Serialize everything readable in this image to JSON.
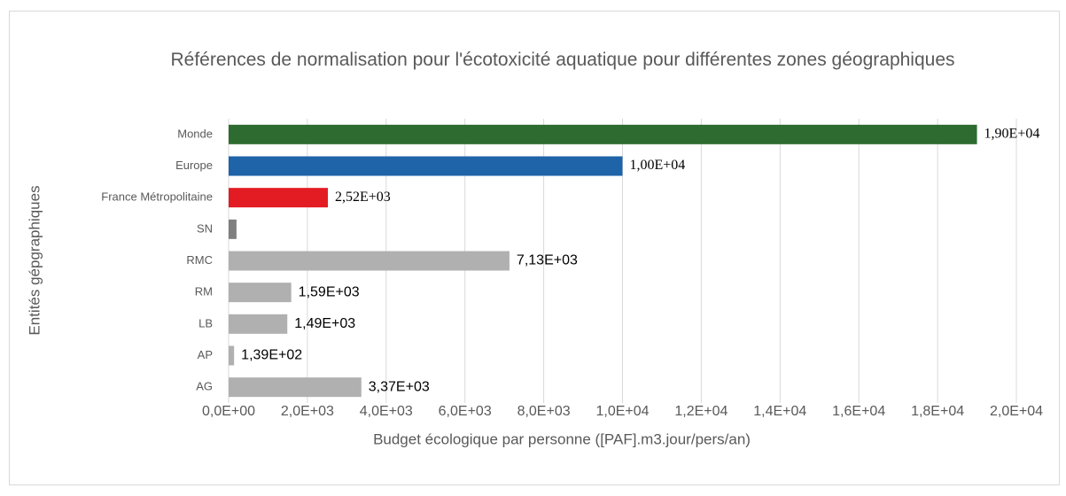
{
  "chart_data": {
    "type": "bar",
    "orientation": "horizontal",
    "title": "Références de normalisation pour l'écotoxicité aquatique pour différentes zones géographiques",
    "x_label": "Budget écologique par personne ([PAF].m3.jour/pers/an)",
    "y_label": "Entités gépgraphiques",
    "categories": [
      "Monde",
      "Europe",
      "France Métropolitaine",
      "SN",
      "RMC",
      "RM",
      "LB",
      "AP",
      "AG"
    ],
    "values": [
      19000,
      10000,
      2520,
      200,
      7130,
      1590,
      1490,
      139,
      3370
    ],
    "value_labels": [
      "1,90E+04",
      "1,00E+04",
      "2,52E+03",
      null,
      "7,13E+03",
      "1,59E+03",
      "1,49E+03",
      "1,39E+02",
      "3,37E+03"
    ],
    "colors": [
      "#2e6b30",
      "#1f63a8",
      "#e31c23",
      "#7f7f7f",
      "#b0b0b0",
      "#b0b0b0",
      "#b0b0b0",
      "#b0b0b0",
      "#b0b0b0"
    ],
    "xlim": [
      0,
      20000
    ],
    "xticks": [
      {
        "value": 0,
        "label": "0,0E+00"
      },
      {
        "value": 2000,
        "label": "2,0E+03"
      },
      {
        "value": 4000,
        "label": "4,0E+03"
      },
      {
        "value": 6000,
        "label": "6,0E+03"
      },
      {
        "value": 8000,
        "label": "8,0E+03"
      },
      {
        "value": 10000,
        "label": "1,0E+04"
      },
      {
        "value": 12000,
        "label": "1,2E+04"
      },
      {
        "value": 14000,
        "label": "1,4E+04"
      },
      {
        "value": 16000,
        "label": "1,6E+04"
      },
      {
        "value": 18000,
        "label": "1,8E+04"
      },
      {
        "value": 20000,
        "label": "2,0E+04"
      }
    ],
    "grid": true
  }
}
